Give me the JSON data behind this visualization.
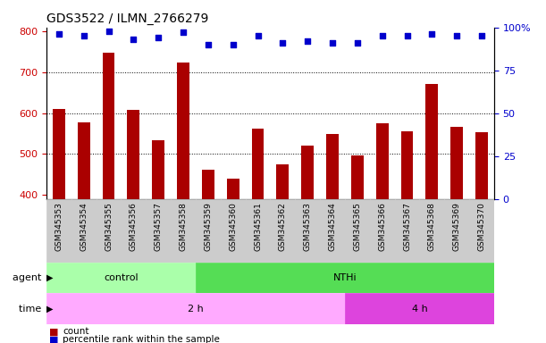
{
  "title": "GDS3522 / ILMN_2766279",
  "categories": [
    "GSM345353",
    "GSM345354",
    "GSM345355",
    "GSM345356",
    "GSM345357",
    "GSM345358",
    "GSM345359",
    "GSM345360",
    "GSM345361",
    "GSM345362",
    "GSM345363",
    "GSM345364",
    "GSM345365",
    "GSM345366",
    "GSM345367",
    "GSM345368",
    "GSM345369",
    "GSM345370"
  ],
  "counts": [
    610,
    578,
    748,
    608,
    533,
    725,
    462,
    440,
    562,
    474,
    520,
    549,
    496,
    576,
    555,
    671,
    567,
    554
  ],
  "percentiles": [
    96,
    95,
    98,
    93,
    94,
    97,
    90,
    90,
    95,
    91,
    92,
    91,
    91,
    95,
    95,
    96,
    95,
    95
  ],
  "ylim_left": [
    390,
    810
  ],
  "ylim_right": [
    0,
    100
  ],
  "yticks_left": [
    400,
    500,
    600,
    700,
    800
  ],
  "yticks_right": [
    0,
    25,
    50,
    75,
    100
  ],
  "bar_color": "#aa0000",
  "dot_color": "#0000cc",
  "background_color": "#ffffff",
  "agent_groups": [
    {
      "label": "control",
      "start": 0,
      "end": 6,
      "color": "#aaffaa"
    },
    {
      "label": "NTHi",
      "start": 6,
      "end": 18,
      "color": "#55dd55"
    }
  ],
  "time_groups": [
    {
      "label": "2 h",
      "start": 0,
      "end": 12,
      "color": "#ffaaff"
    },
    {
      "label": "4 h",
      "start": 12,
      "end": 18,
      "color": "#dd44dd"
    }
  ],
  "legend_count_label": "count",
  "legend_percentile_label": "percentile rank within the sample",
  "tick_label_color_left": "#cc0000",
  "tick_label_color_right": "#0000cc",
  "dot_size": 18,
  "bar_width": 0.5
}
